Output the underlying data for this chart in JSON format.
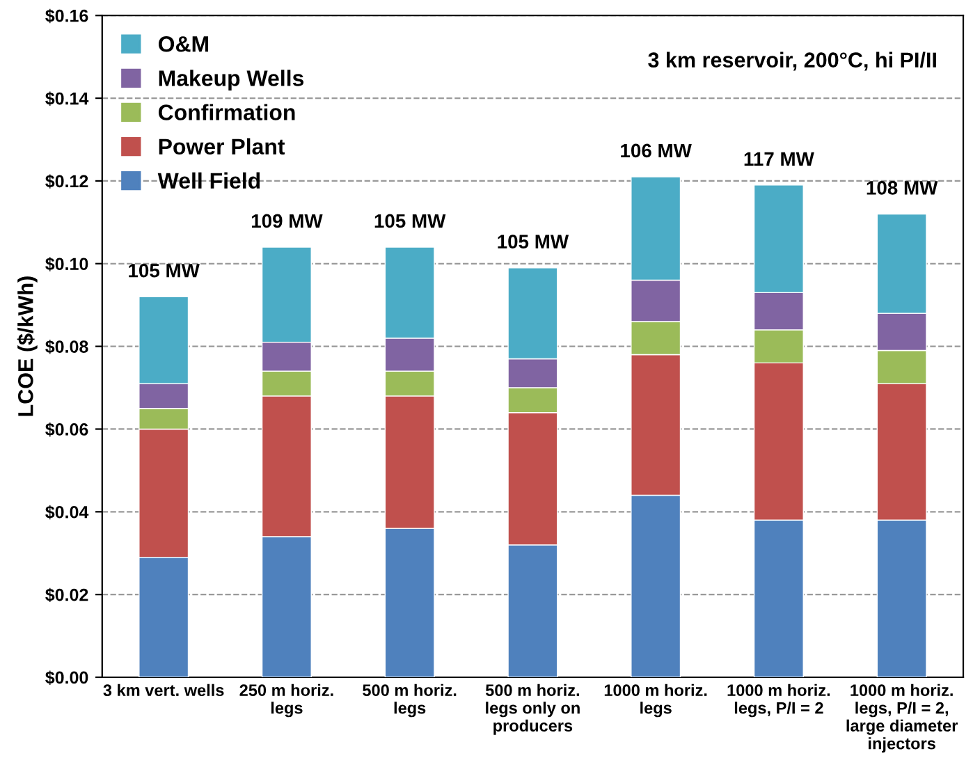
{
  "chart_data": {
    "type": "bar",
    "stacked": true,
    "title": "3 km reservoir, 200°C, hi PI/II",
    "ylabel": "LCOE ($/kWh)",
    "categories": [
      "3 km vert. wells",
      "250 m horiz.\nlegs",
      "500 m horiz.\nlegs",
      "500 m horiz.\nlegs only on\nproducers",
      "1000 m horiz.\nlegs",
      "1000 m horiz.\nlegs, P/I = 2",
      "1000 m horiz.\nlegs, P/I = 2,\nlarge diameter\ninjectors"
    ],
    "series": [
      {
        "name": "Well Field",
        "color": "#4f81bd",
        "values": [
          0.029,
          0.034,
          0.036,
          0.032,
          0.044,
          0.038,
          0.038
        ]
      },
      {
        "name": "Power Plant",
        "color": "#c0504d",
        "values": [
          0.031,
          0.034,
          0.032,
          0.032,
          0.034,
          0.038,
          0.033
        ]
      },
      {
        "name": "Confirmation",
        "color": "#9bbb59",
        "values": [
          0.005,
          0.006,
          0.006,
          0.006,
          0.008,
          0.008,
          0.008
        ]
      },
      {
        "name": "Makeup Wells",
        "color": "#8064a2",
        "values": [
          0.006,
          0.007,
          0.008,
          0.007,
          0.01,
          0.009,
          0.009
        ]
      },
      {
        "name": "O&M",
        "color": "#4bacc6",
        "values": [
          0.021,
          0.023,
          0.022,
          0.022,
          0.025,
          0.026,
          0.024
        ]
      }
    ],
    "annotations": [
      {
        "text": "105 MW",
        "x": "3 km vert. wells",
        "y": 0.092
      },
      {
        "text": "109 MW",
        "x": "250 m horiz.\nlegs",
        "y": 0.104
      },
      {
        "text": "105 MW",
        "x": "500 m horiz.\nlegs",
        "y": 0.104
      },
      {
        "text": "105 MW",
        "x": "500 m horiz.\nlegs only on\nproducers",
        "y": 0.099
      },
      {
        "text": "106 MW",
        "x": "1000 m horiz.\nlegs",
        "y": 0.121
      },
      {
        "text": "117 MW",
        "x": "1000 m horiz.\nlegs, P/I = 2",
        "y": 0.119
      },
      {
        "text": "108 MW",
        "x": "1000 m horiz.\nlegs, P/I = 2,\nlarge diameter\ninjectors",
        "y": 0.112
      }
    ],
    "ylim": [
      0,
      0.16
    ],
    "yticks": [
      {
        "value": 0,
        "label": "$0.00"
      },
      {
        "value": 0.02,
        "label": "$0.02"
      },
      {
        "value": 0.04,
        "label": "$0.04"
      },
      {
        "value": 0.06,
        "label": "$0.06"
      },
      {
        "value": 0.08,
        "label": "$0.08"
      },
      {
        "value": 0.1,
        "label": "$0.10"
      },
      {
        "value": 0.12,
        "label": "$0.12"
      },
      {
        "value": 0.14,
        "label": "$0.14"
      },
      {
        "value": 0.16,
        "label": "$0.16"
      }
    ],
    "grid": "y",
    "legend": "top left"
  }
}
